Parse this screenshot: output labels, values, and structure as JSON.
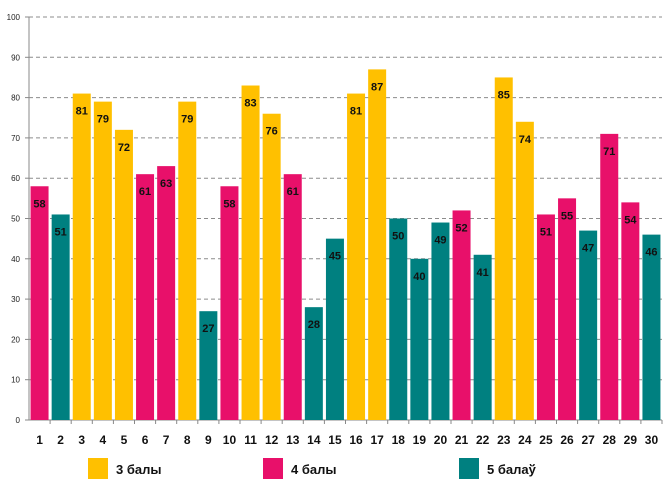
{
  "chart_data": {
    "type": "bar",
    "title": "",
    "xlabel": "",
    "ylabel": "",
    "ylim": [
      0,
      100
    ],
    "ytick_step": 10,
    "grid": true,
    "categories": [
      "1",
      "2",
      "3",
      "4",
      "5",
      "6",
      "7",
      "8",
      "9",
      "10",
      "11",
      "12",
      "13",
      "14",
      "15",
      "16",
      "17",
      "18",
      "19",
      "20",
      "21",
      "22",
      "23",
      "24",
      "25",
      "26",
      "27",
      "28",
      "29",
      "30"
    ],
    "values": [
      58,
      51,
      81,
      79,
      72,
      61,
      63,
      79,
      27,
      58,
      83,
      76,
      61,
      28,
      45,
      81,
      87,
      50,
      40,
      49,
      52,
      41,
      85,
      74,
      51,
      55,
      47,
      71,
      54,
      46
    ],
    "groups": [
      "4 балы",
      "5 балаў",
      "3 балы",
      "3 балы",
      "3 балы",
      "4 балы",
      "4 балы",
      "3 балы",
      "5 балаў",
      "4 балы",
      "3 балы",
      "3 балы",
      "4 балы",
      "5 балаў",
      "5 балаў",
      "3 балы",
      "3 балы",
      "5 балаў",
      "5 балаў",
      "5 балаў",
      "4 балы",
      "5 балаў",
      "3 балы",
      "3 балы",
      "4 балы",
      "4 балы",
      "5 балаў",
      "4 балы",
      "4 балы",
      "5 балаў"
    ],
    "legend": [
      {
        "name": "3 балы",
        "color": "#FFC000"
      },
      {
        "name": "4 балы",
        "color": "#E8106A"
      },
      {
        "name": "5 балаў",
        "color": "#008080"
      }
    ],
    "legend_position": "bottom"
  }
}
